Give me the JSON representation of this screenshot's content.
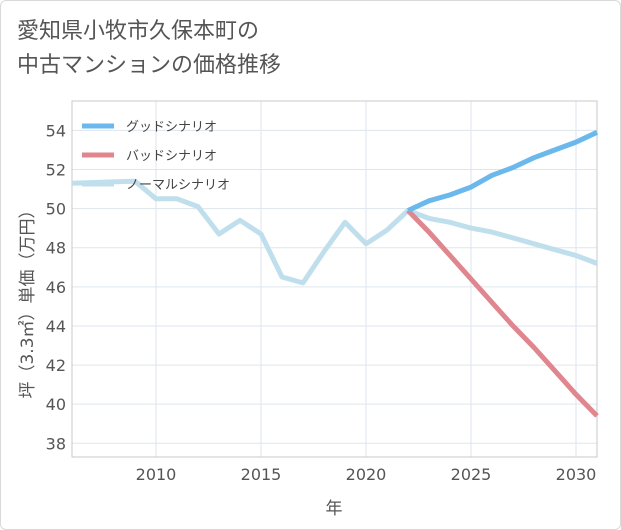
{
  "title_lines": [
    "愛知県小牧市久保本町の",
    "中古マンションの価格推移"
  ],
  "chart_data": {
    "type": "line",
    "xlabel": "年",
    "ylabel": "坪（3.3㎡）単価（万円）",
    "xlim": [
      2006,
      2031
    ],
    "ylim": [
      37.3,
      55.5
    ],
    "xticks": [
      2010,
      2015,
      2020,
      2025,
      2030
    ],
    "yticks": [
      38,
      40,
      42,
      44,
      46,
      48,
      50,
      52,
      54
    ],
    "grid": true,
    "legend_position": "top-left",
    "series": [
      {
        "name": "グッドシナリオ",
        "color": "#6bb8ec",
        "x": [
          2022,
          2023,
          2024,
          2025,
          2026,
          2027,
          2028,
          2029,
          2030,
          2031
        ],
        "y": [
          49.9,
          50.4,
          50.7,
          51.1,
          51.7,
          52.1,
          52.6,
          53.0,
          53.4,
          53.9
        ]
      },
      {
        "name": "バッドシナリオ",
        "color": "#e0868f",
        "x": [
          2022,
          2023,
          2024,
          2025,
          2026,
          2027,
          2028,
          2029,
          2030,
          2031
        ],
        "y": [
          49.9,
          48.8,
          47.6,
          46.4,
          45.2,
          44.0,
          42.9,
          41.7,
          40.5,
          39.4
        ]
      },
      {
        "name": "ノーマルシナリオ",
        "color": "#c0dfec",
        "x": [
          2006,
          2009,
          2010,
          2011,
          2012,
          2013,
          2014,
          2015,
          2016,
          2017,
          2018,
          2019,
          2020,
          2021,
          2022,
          2023,
          2024,
          2025,
          2026,
          2027,
          2028,
          2029,
          2030,
          2031
        ],
        "y": [
          51.3,
          51.4,
          50.5,
          50.5,
          50.1,
          48.7,
          49.4,
          48.7,
          46.5,
          46.2,
          47.8,
          49.3,
          48.2,
          48.9,
          49.9,
          49.5,
          49.3,
          49.0,
          48.8,
          48.5,
          48.2,
          47.9,
          47.6,
          47.2
        ]
      }
    ]
  }
}
